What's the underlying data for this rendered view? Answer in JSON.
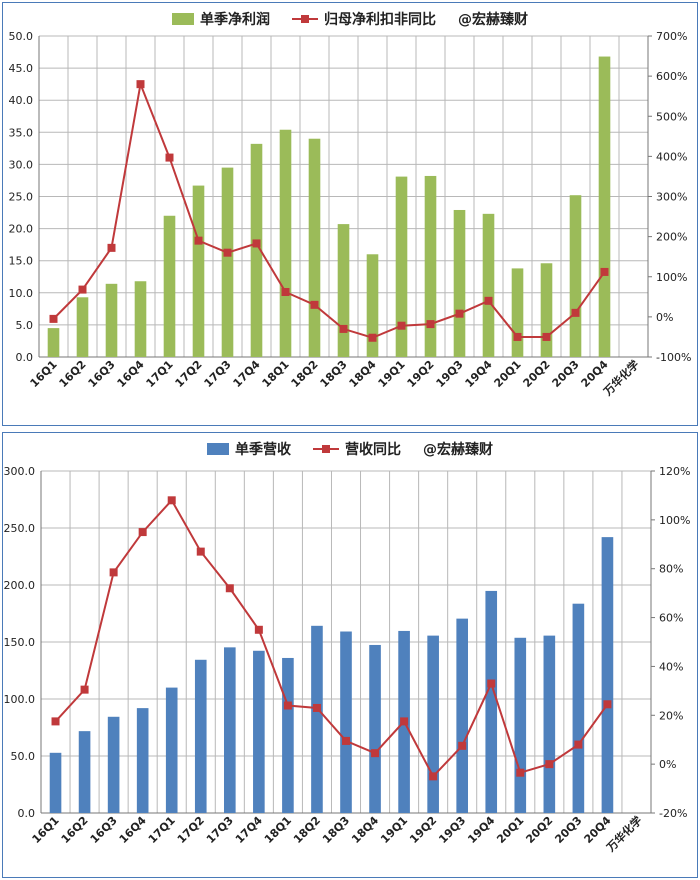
{
  "chart_data": [
    {
      "type": "bar",
      "categories": [
        "16Q1",
        "16Q2",
        "16Q3",
        "16Q4",
        "17Q1",
        "17Q2",
        "17Q3",
        "17Q4",
        "18Q1",
        "18Q2",
        "18Q3",
        "18Q4",
        "19Q1",
        "19Q2",
        "19Q3",
        "19Q4",
        "20Q1",
        "20Q2",
        "20Q3",
        "20Q4"
      ],
      "extra_axis_label": "万华化学",
      "series": [
        {
          "name": "单季净利润",
          "kind": "bar",
          "axis": "left",
          "color": "#9bbb59",
          "values": [
            4.5,
            9.3,
            11.4,
            11.8,
            22.0,
            26.7,
            29.5,
            33.2,
            35.4,
            34.0,
            20.7,
            16.0,
            28.1,
            28.2,
            22.9,
            22.3,
            13.8,
            14.6,
            25.2,
            46.8
          ]
        },
        {
          "name": "归母净利扣非同比",
          "kind": "line",
          "axis": "right",
          "color": "#c0393b",
          "values": [
            -5,
            68,
            172,
            580,
            397,
            190,
            160,
            183,
            62,
            30,
            -30,
            -52,
            -22,
            -18,
            8,
            40,
            -50,
            -50,
            10,
            112
          ]
        }
      ],
      "watermark": "@宏赫臻财",
      "ylim_left": [
        0,
        50
      ],
      "yticks_left": [
        "0.0",
        "5.0",
        "10.0",
        "15.0",
        "20.0",
        "25.0",
        "30.0",
        "35.0",
        "40.0",
        "45.0",
        "50.0"
      ],
      "ylim_right": [
        -100,
        700
      ],
      "yticks_right": [
        "-100%",
        "0%",
        "100%",
        "200%",
        "300%",
        "400%",
        "500%",
        "600%",
        "700%"
      ],
      "grid": true,
      "legend": "top"
    },
    {
      "type": "bar",
      "categories": [
        "16Q1",
        "16Q2",
        "16Q3",
        "16Q4",
        "17Q1",
        "17Q2",
        "17Q3",
        "17Q4",
        "18Q1",
        "18Q2",
        "18Q3",
        "18Q4",
        "19Q1",
        "19Q2",
        "19Q3",
        "19Q4",
        "20Q1",
        "20Q2",
        "20Q3",
        "20Q4"
      ],
      "extra_axis_label": "万华化学",
      "series": [
        {
          "name": "单季营收",
          "kind": "bar",
          "axis": "left",
          "color": "#4f81bd",
          "values": [
            52.8,
            71.8,
            84.4,
            92.0,
            110.0,
            134.4,
            145.3,
            142.3,
            136.0,
            164.2,
            159.2,
            147.4,
            159.7,
            155.6,
            170.5,
            194.8,
            153.7,
            155.6,
            183.6,
            242.0
          ]
        },
        {
          "name": "营收同比",
          "kind": "line",
          "axis": "right",
          "color": "#c0393b",
          "values": [
            17.5,
            30.5,
            78.5,
            95.0,
            108.0,
            87.0,
            72.0,
            55.0,
            24.0,
            23.0,
            9.5,
            4.5,
            17.5,
            -5.0,
            7.5,
            33.0,
            -3.5,
            0.0,
            8.0,
            24.5
          ]
        }
      ],
      "watermark": "@宏赫臻财",
      "ylim_left": [
        0,
        300
      ],
      "yticks_left": [
        "0.0",
        "50.0",
        "100.0",
        "150.0",
        "200.0",
        "250.0",
        "300.0"
      ],
      "ylim_right": [
        -20,
        120
      ],
      "yticks_right": [
        "-20%",
        "0%",
        "20%",
        "40%",
        "60%",
        "80%",
        "100%",
        "120%"
      ],
      "grid": true,
      "legend": "top"
    }
  ]
}
